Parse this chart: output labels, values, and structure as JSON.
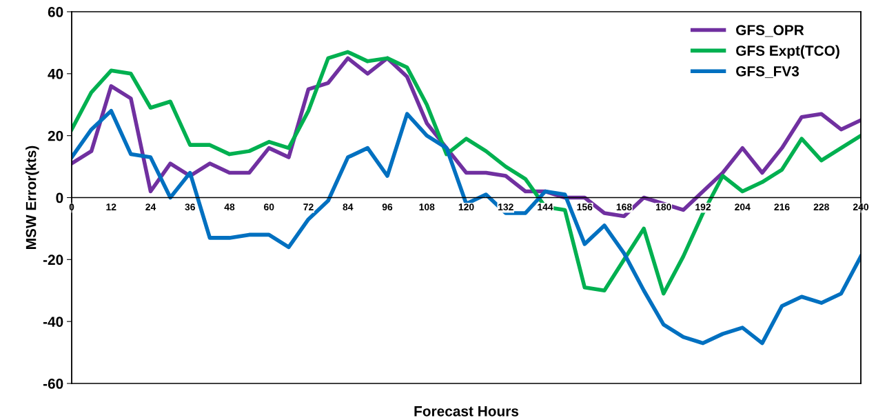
{
  "chart_data": {
    "type": "line",
    "xlabel": "Forecast Hours",
    "ylabel": "MSW Error(kts)",
    "x": [
      0,
      6,
      12,
      18,
      24,
      30,
      36,
      42,
      48,
      54,
      60,
      66,
      72,
      78,
      84,
      90,
      96,
      102,
      108,
      114,
      120,
      126,
      132,
      138,
      144,
      150,
      156,
      162,
      168,
      174,
      180,
      186,
      192,
      198,
      204,
      210,
      216,
      222,
      228,
      234,
      240
    ],
    "series": [
      {
        "name": "GFS_OPR",
        "color": "#7030a0",
        "values": [
          11,
          15,
          36,
          32,
          2,
          11,
          7,
          11,
          8,
          8,
          16,
          13,
          35,
          37,
          45,
          40,
          45,
          39,
          24,
          16,
          8,
          8,
          7,
          2,
          2,
          0,
          0,
          -5,
          -6,
          0,
          -2,
          -4,
          2,
          8,
          16,
          8,
          16,
          26,
          27,
          22,
          25
        ]
      },
      {
        "name": "GFS Expt(TCO)",
        "color": "#00b050",
        "values": [
          22,
          34,
          41,
          40,
          29,
          31,
          17,
          17,
          14,
          15,
          18,
          16,
          28,
          45,
          47,
          44,
          45,
          42,
          30,
          14,
          19,
          15,
          10,
          6,
          -3,
          -4,
          -29,
          -30,
          -20,
          -10,
          -31,
          -19,
          -5,
          7,
          2,
          5,
          9,
          19,
          12,
          16,
          20
        ]
      },
      {
        "name": "GFS_FV3",
        "color": "#0070c0",
        "values": [
          13,
          22,
          28,
          14,
          13,
          0,
          8,
          -13,
          -13,
          -12,
          -12,
          -16,
          -7,
          -1,
          13,
          16,
          7,
          27,
          20,
          16,
          -2,
          1,
          -5,
          -5,
          2,
          1,
          -15,
          -9,
          -18,
          -30,
          -41,
          -45,
          -47,
          -44,
          -42,
          -47,
          -35,
          -32,
          -34,
          -31,
          -19
        ]
      }
    ],
    "xlim": [
      0,
      240
    ],
    "xticks": [
      0,
      12,
      24,
      36,
      48,
      60,
      72,
      84,
      96,
      108,
      120,
      132,
      144,
      156,
      168,
      180,
      192,
      204,
      216,
      228,
      240
    ],
    "ylim": [
      -60,
      60
    ],
    "yticks": [
      -60,
      -40,
      -20,
      0,
      20,
      40,
      60
    ],
    "grid": false,
    "legend": "top right",
    "marker": "none",
    "line_style": "solid"
  }
}
